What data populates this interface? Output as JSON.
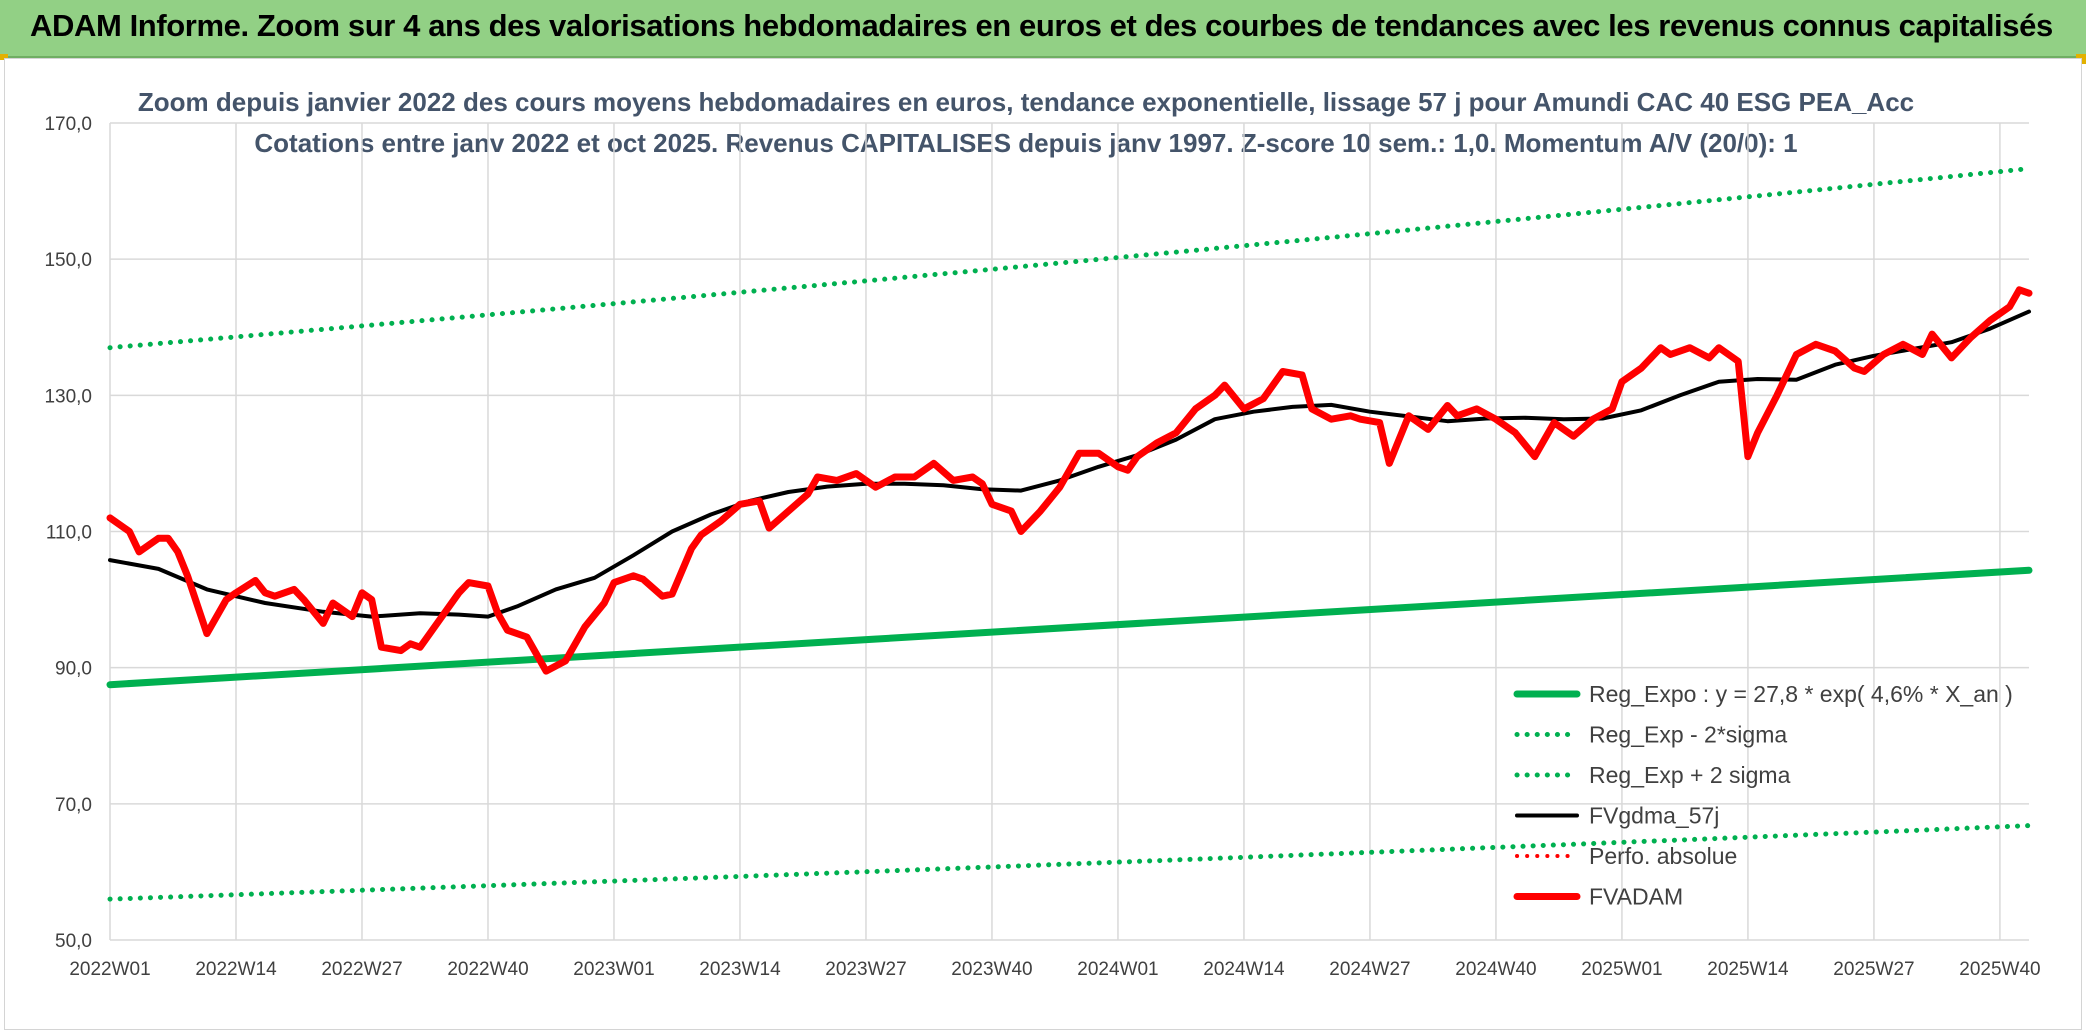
{
  "header": {
    "title": "ADAM Informe. Zoom sur 4 ans des valorisations hebdomadaires en euros et des courbes de tendances avec les revenus connus capitalisés"
  },
  "chart_data": {
    "type": "line",
    "title": "Zoom depuis janvier 2022 des cours moyens hebdomadaires en euros, tendance exponentielle, lissage 57 j pour Amundi CAC 40 ESG PEA_Acc",
    "subtitle": "Cotations entre janv 2022 et oct 2025. Revenus CAPITALISES depuis janv 1997. Z-score 10 sem.: 1,0. Momentum A/V (20/0): 1",
    "ylim": [
      50,
      170
    ],
    "yticks": [
      "170,0",
      "150,0",
      "130,0",
      "110,0",
      "90,0",
      "70,0",
      "50,0"
    ],
    "ytick_values": [
      170,
      150,
      130,
      110,
      90,
      70,
      50
    ],
    "xtick_labels": [
      "2022W01",
      "2022W14",
      "2022W27",
      "2022W40",
      "2023W01",
      "2023W14",
      "2023W27",
      "2023W40",
      "2024W01",
      "2024W14",
      "2024W27",
      "2024W40",
      "2025W01",
      "2025W14",
      "2025W27",
      "2025W40"
    ],
    "xtick_indices": [
      0,
      13,
      26,
      39,
      52,
      65,
      78,
      91,
      104,
      117,
      130,
      143,
      156,
      169,
      182,
      195
    ],
    "n_weeks": 199,
    "series": [
      {
        "name": "Reg_Expo : y = 27,8 * exp( 4,6% *  X_an )",
        "style": "solid",
        "color": "#00b050",
        "width": 7,
        "x": [
          0,
          198
        ],
        "values": [
          87.5,
          104.3
        ]
      },
      {
        "name": "Reg_Exp - 2*sigma",
        "style": "dotted",
        "color": "#00b050",
        "width": 5,
        "x": [
          0,
          198
        ],
        "values": [
          56.0,
          66.8
        ]
      },
      {
        "name": "Reg_Exp + 2 sigma",
        "style": "dotted",
        "color": "#00b050",
        "width": 5,
        "x": [
          0,
          198
        ],
        "values": [
          137.0,
          163.3
        ]
      },
      {
        "name": "FVgdma_57j",
        "style": "solid",
        "color": "#000000",
        "width": 4,
        "x": [
          0,
          5,
          10,
          16,
          22,
          27,
          32,
          36,
          39,
          42,
          46,
          50,
          54,
          58,
          62,
          66,
          70,
          74,
          78,
          82,
          86,
          90,
          94,
          98,
          102,
          106,
          110,
          114,
          118,
          122,
          126,
          130,
          134,
          138,
          142,
          146,
          150,
          154,
          158,
          162,
          166,
          170,
          174,
          178,
          182,
          186,
          190,
          194,
          198
        ],
        "values": [
          105.8,
          104.5,
          101.5,
          99.5,
          98.2,
          97.5,
          98.0,
          97.8,
          97.5,
          99.0,
          101.5,
          103.2,
          106.5,
          110.0,
          112.5,
          114.5,
          115.8,
          116.6,
          117.0,
          117.0,
          116.8,
          116.2,
          116.0,
          117.5,
          119.5,
          121.2,
          123.5,
          126.5,
          127.6,
          128.3,
          128.6,
          127.6,
          126.9,
          126.2,
          126.6,
          126.7,
          126.5,
          126.6,
          127.8,
          130.0,
          132.0,
          132.4,
          132.3,
          134.5,
          135.8,
          136.8,
          137.8,
          139.8,
          142.3
        ]
      },
      {
        "name": "Perfo. absolue",
        "style": "dotted",
        "color": "#ff0000",
        "width": 4,
        "x": [],
        "values": []
      },
      {
        "name": "FVADAM",
        "style": "solid",
        "color": "#ff0000",
        "width": 7,
        "x": [
          0,
          2,
          3,
          5,
          6,
          7,
          8,
          10,
          12,
          13,
          15,
          16,
          17,
          19,
          20,
          22,
          23,
          25,
          26,
          27,
          28,
          30,
          31,
          32,
          34,
          36,
          37,
          39,
          40,
          41,
          43,
          45,
          47,
          49,
          51,
          52,
          54,
          55,
          57,
          58,
          60,
          61,
          63,
          65,
          67,
          68,
          70,
          72,
          73,
          75,
          77,
          79,
          81,
          83,
          85,
          87,
          89,
          90,
          91,
          93,
          94,
          96,
          98,
          100,
          102,
          104,
          105,
          106,
          108,
          110,
          112,
          114,
          115,
          117,
          119,
          121,
          123,
          124,
          126,
          128,
          129,
          131,
          132,
          134,
          136,
          138,
          139,
          141,
          143,
          145,
          147,
          149,
          151,
          153,
          155,
          156,
          158,
          160,
          161,
          163,
          165,
          166,
          168,
          169,
          170,
          172,
          174,
          176,
          178,
          180,
          181,
          183,
          185,
          187,
          188,
          190,
          192,
          194,
          196,
          197,
          198
        ],
        "values": [
          112.0,
          110.0,
          107.0,
          109.0,
          109.0,
          107.0,
          103.5,
          95.0,
          100.0,
          101.0,
          102.8,
          101.0,
          100.5,
          101.5,
          100.0,
          96.5,
          99.5,
          97.5,
          101.0,
          100.0,
          93.0,
          92.5,
          93.5,
          93.0,
          97.0,
          101.0,
          102.5,
          102.0,
          98.0,
          95.5,
          94.5,
          89.5,
          91.0,
          96.0,
          99.5,
          102.5,
          103.5,
          103.0,
          100.5,
          100.8,
          107.5,
          109.5,
          111.5,
          114.0,
          114.5,
          110.5,
          113.0,
          115.5,
          118.0,
          117.5,
          118.5,
          116.5,
          118.0,
          118.0,
          120.0,
          117.5,
          118.0,
          117.0,
          114.0,
          113.0,
          110.0,
          113.0,
          116.5,
          121.5,
          121.5,
          119.5,
          119.0,
          121.0,
          123.0,
          124.5,
          128.0,
          130.0,
          131.5,
          128.0,
          129.5,
          133.5,
          133.0,
          128.0,
          126.5,
          127.0,
          126.5,
          126.0,
          120.0,
          127.0,
          125.0,
          128.5,
          127.0,
          128.0,
          126.5,
          124.5,
          121.0,
          126.0,
          124.0,
          126.5,
          128.0,
          132.0,
          134.0,
          137.0,
          136.0,
          137.0,
          135.5,
          137.0,
          135.0,
          121.0,
          124.5,
          130.0,
          136.0,
          137.5,
          136.5,
          134.0,
          133.5,
          136.0,
          137.5,
          136.0,
          139.0,
          135.5,
          138.5,
          141.0,
          143.0,
          145.5,
          145.0
        ]
      }
    ],
    "legend_position": "bottom-right",
    "grid": true
  }
}
